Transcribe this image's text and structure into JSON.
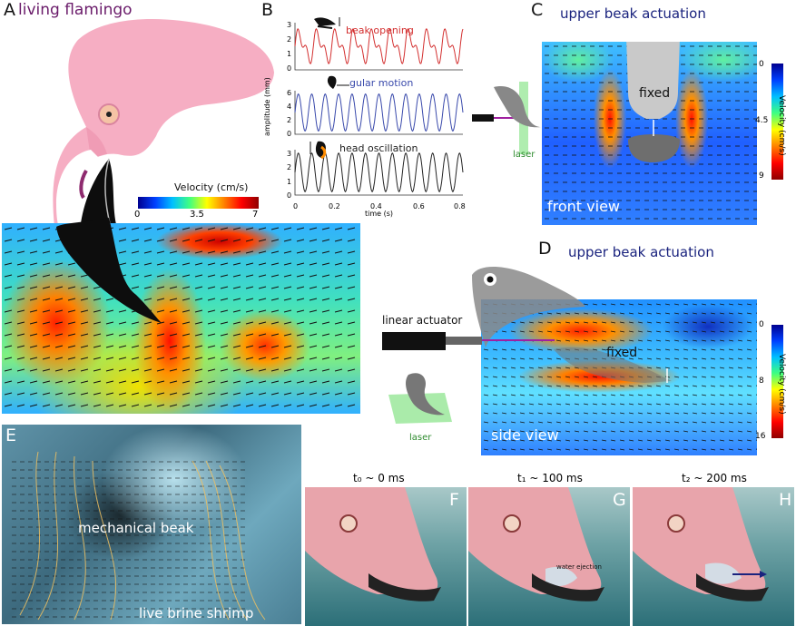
{
  "panels": {
    "A": {
      "letter": "A",
      "title": "living flamingo",
      "colorbar": {
        "title": "Velocity (cm/s)",
        "ticks": [
          "0",
          "3.5",
          "7"
        ]
      }
    },
    "B": {
      "letter": "B",
      "traces": [
        {
          "label": "beak opening",
          "color": "#d32f2f",
          "yticks": [
            "3",
            "2",
            "1",
            "0"
          ]
        },
        {
          "label": "gular motion",
          "color": "#3949ab",
          "yticks": [
            "6",
            "4",
            "2",
            "0"
          ]
        },
        {
          "label": "head oscillation",
          "color": "#222222",
          "yticks": [
            "3",
            "2",
            "1",
            "0"
          ]
        }
      ],
      "ylabel": "amplitude (mm)",
      "xticks": [
        "0",
        "0.2",
        "0.4",
        "0.6",
        "0.8"
      ],
      "xlabel": "time (s)"
    },
    "C": {
      "letter": "C",
      "title": "upper beak actuation",
      "fixed": "fixed",
      "view": "front view",
      "laser": "laser",
      "colorbar": {
        "title": "Velocity (cm/s)",
        "ticks": [
          "0",
          "4.5",
          "9"
        ]
      }
    },
    "D": {
      "letter": "D",
      "title": "upper beak actuation",
      "fixed": "fixed",
      "view": "side view",
      "actuator": "linear actuator",
      "laser": "laser",
      "colorbar": {
        "title": "Velocity (cm/s)",
        "ticks": [
          "0",
          "8",
          "16"
        ]
      }
    },
    "E": {
      "letter": "E",
      "beak": "mechanical beak",
      "shrimp": "live brine shrimp"
    },
    "F": {
      "letter": "F",
      "time": "t₀ ~ 0 ms"
    },
    "G": {
      "letter": "G",
      "time": "t₁  ~ 100 ms",
      "annotation": "water ejection"
    },
    "H": {
      "letter": "H",
      "time": "t₂  ~ 200 ms"
    }
  },
  "colors": {
    "navy": "#1a237e",
    "flamingo": "#f6aec3",
    "laser": "#9be89b"
  }
}
